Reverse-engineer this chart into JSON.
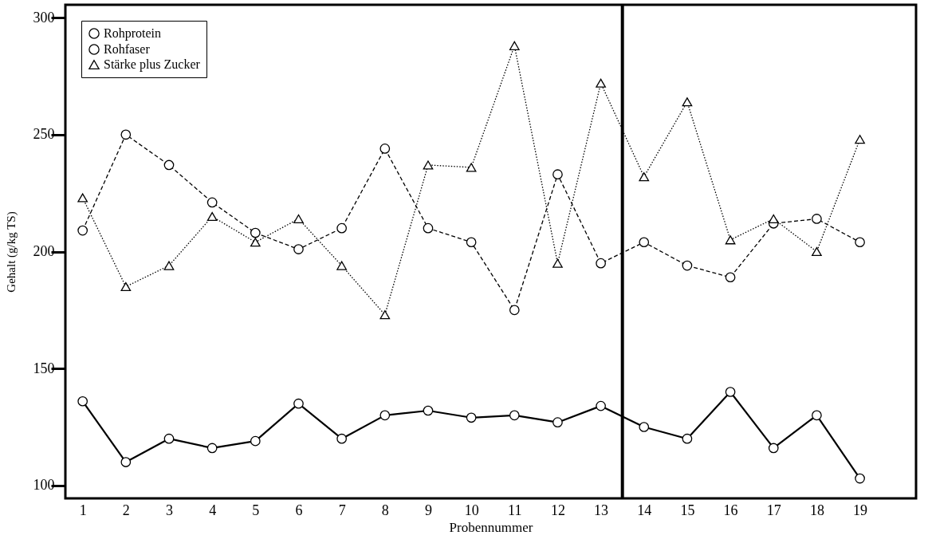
{
  "chart_data": {
    "type": "line",
    "xlabel": "Probennummer",
    "ylabel": "Gehalt (g/kg TS)",
    "x": [
      1,
      2,
      3,
      4,
      5,
      6,
      7,
      8,
      9,
      10,
      11,
      12,
      13,
      14,
      15,
      16,
      17,
      18,
      19
    ],
    "xlim": [
      0.6,
      20.3
    ],
    "xticks": [
      1,
      2,
      3,
      4,
      5,
      6,
      7,
      8,
      9,
      10,
      11,
      12,
      13,
      14,
      15,
      16,
      17,
      18,
      19
    ],
    "ylim": [
      94.5,
      305.5
    ],
    "yticks": [
      100,
      150,
      200,
      250,
      300
    ],
    "grid": false,
    "legend": "top left",
    "marker": "circle",
    "series": [
      {
        "name": "Rohprotein",
        "color": "#000000",
        "line_style": "solid",
        "values": [
          136,
          110,
          120,
          116,
          119,
          135,
          120,
          130,
          132,
          129,
          130,
          127,
          134,
          125,
          120,
          140,
          116,
          130,
          103
        ]
      },
      {
        "name": "Rohfaser",
        "color": "#000000",
        "line_style": "dashed",
        "values": [
          209,
          250,
          237,
          221,
          208,
          201,
          210,
          244,
          210,
          204,
          175,
          233,
          195,
          204,
          194,
          189,
          212,
          214,
          204
        ]
      },
      {
        "name": "Stärke plus Zucker",
        "color": "#000000",
        "line_style": "dotted",
        "marker": "triangle",
        "values": [
          223,
          185,
          194,
          215,
          204,
          214,
          194,
          173,
          237,
          236,
          288,
          195,
          272,
          232,
          264,
          205,
          214,
          200,
          248
        ]
      }
    ],
    "ref_lines": [
      {
        "axis": "x",
        "value": 13.5,
        "color": "#000000"
      }
    ]
  }
}
